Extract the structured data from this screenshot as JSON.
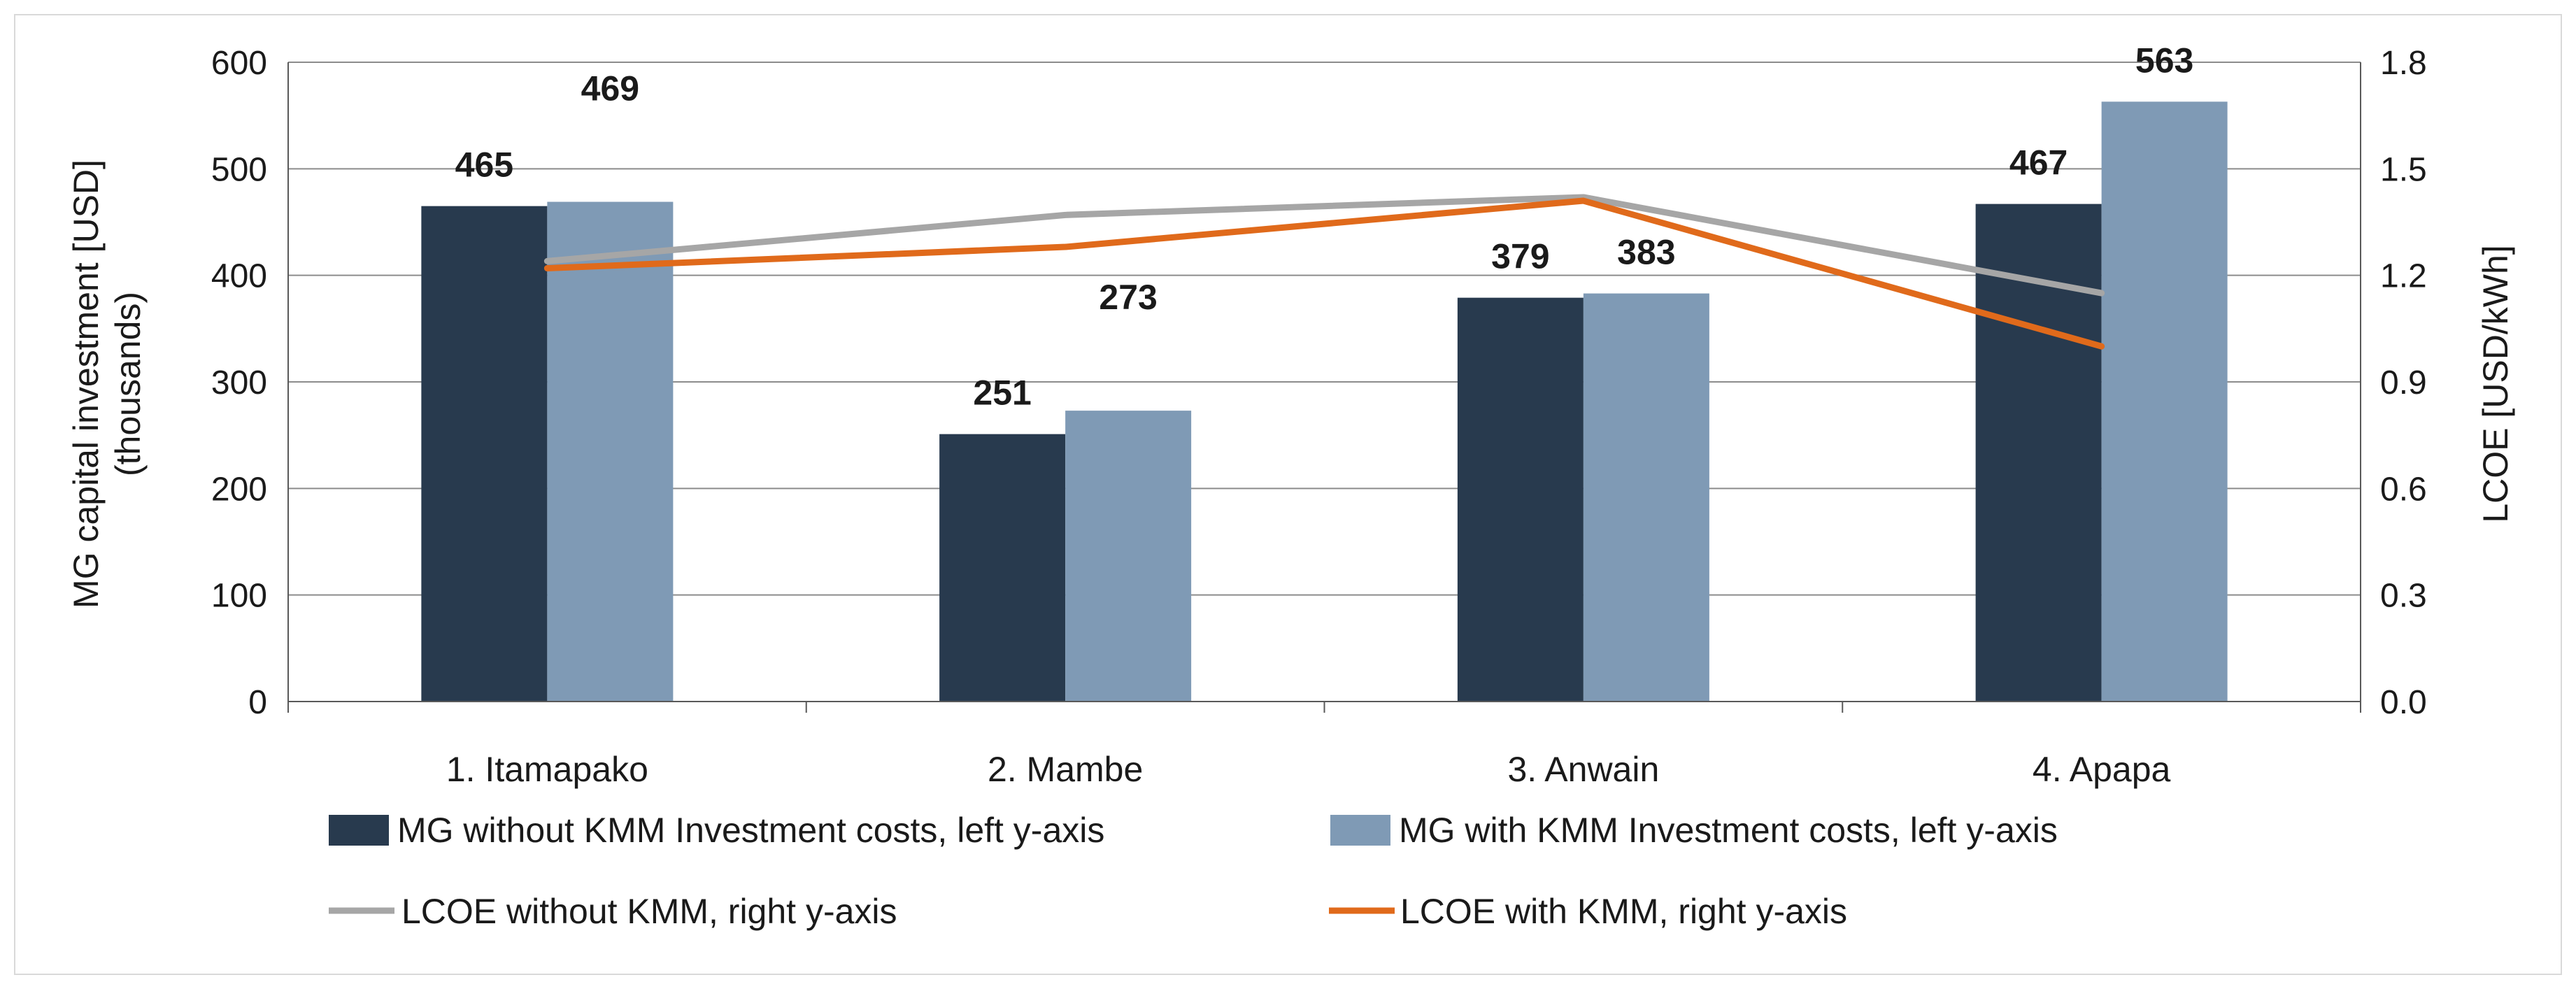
{
  "chart_data": {
    "type": "bar",
    "title": "",
    "categories": [
      "1. Itamapako",
      "2. Mambe",
      "3. Anwain",
      "4. Apapa"
    ],
    "series": [
      {
        "name": "MG without KMM Investment costs, left y-axis",
        "kind": "bar",
        "axis": "left",
        "color": "#283a4e",
        "values": [
          465,
          251,
          379,
          467
        ]
      },
      {
        "name": "MG with KMM Investment costs, left y-axis",
        "kind": "bar",
        "axis": "left",
        "color": "#7f9ab5",
        "values": [
          469,
          273,
          383,
          563
        ]
      },
      {
        "name": "LCOE without KMM, right y-axis",
        "kind": "line",
        "axis": "right",
        "color": "#a6a6a6",
        "values": [
          1.24,
          1.37,
          1.42,
          1.15
        ]
      },
      {
        "name": "LCOE with KMM, right y-axis",
        "kind": "line",
        "axis": "right",
        "color": "#e06a1b",
        "values": [
          1.22,
          1.28,
          1.41,
          1.0
        ]
      }
    ],
    "ylabel_left_line1": "MG capital investment [USD]",
    "ylabel_left_line2": "(thousands)",
    "ylabel_right": "LCOE [USD/kWh]",
    "ylim_left": [
      0,
      600
    ],
    "yticks_left": [
      "0",
      "100",
      "200",
      "300",
      "400",
      "500",
      "600"
    ],
    "ylim_right": [
      0,
      1.8
    ],
    "yticks_right": [
      "0.0",
      "0.3",
      "0.6",
      "0.9",
      "1.2",
      "1.5",
      "1.8"
    ],
    "grid": true,
    "legend_position": "bottom"
  }
}
